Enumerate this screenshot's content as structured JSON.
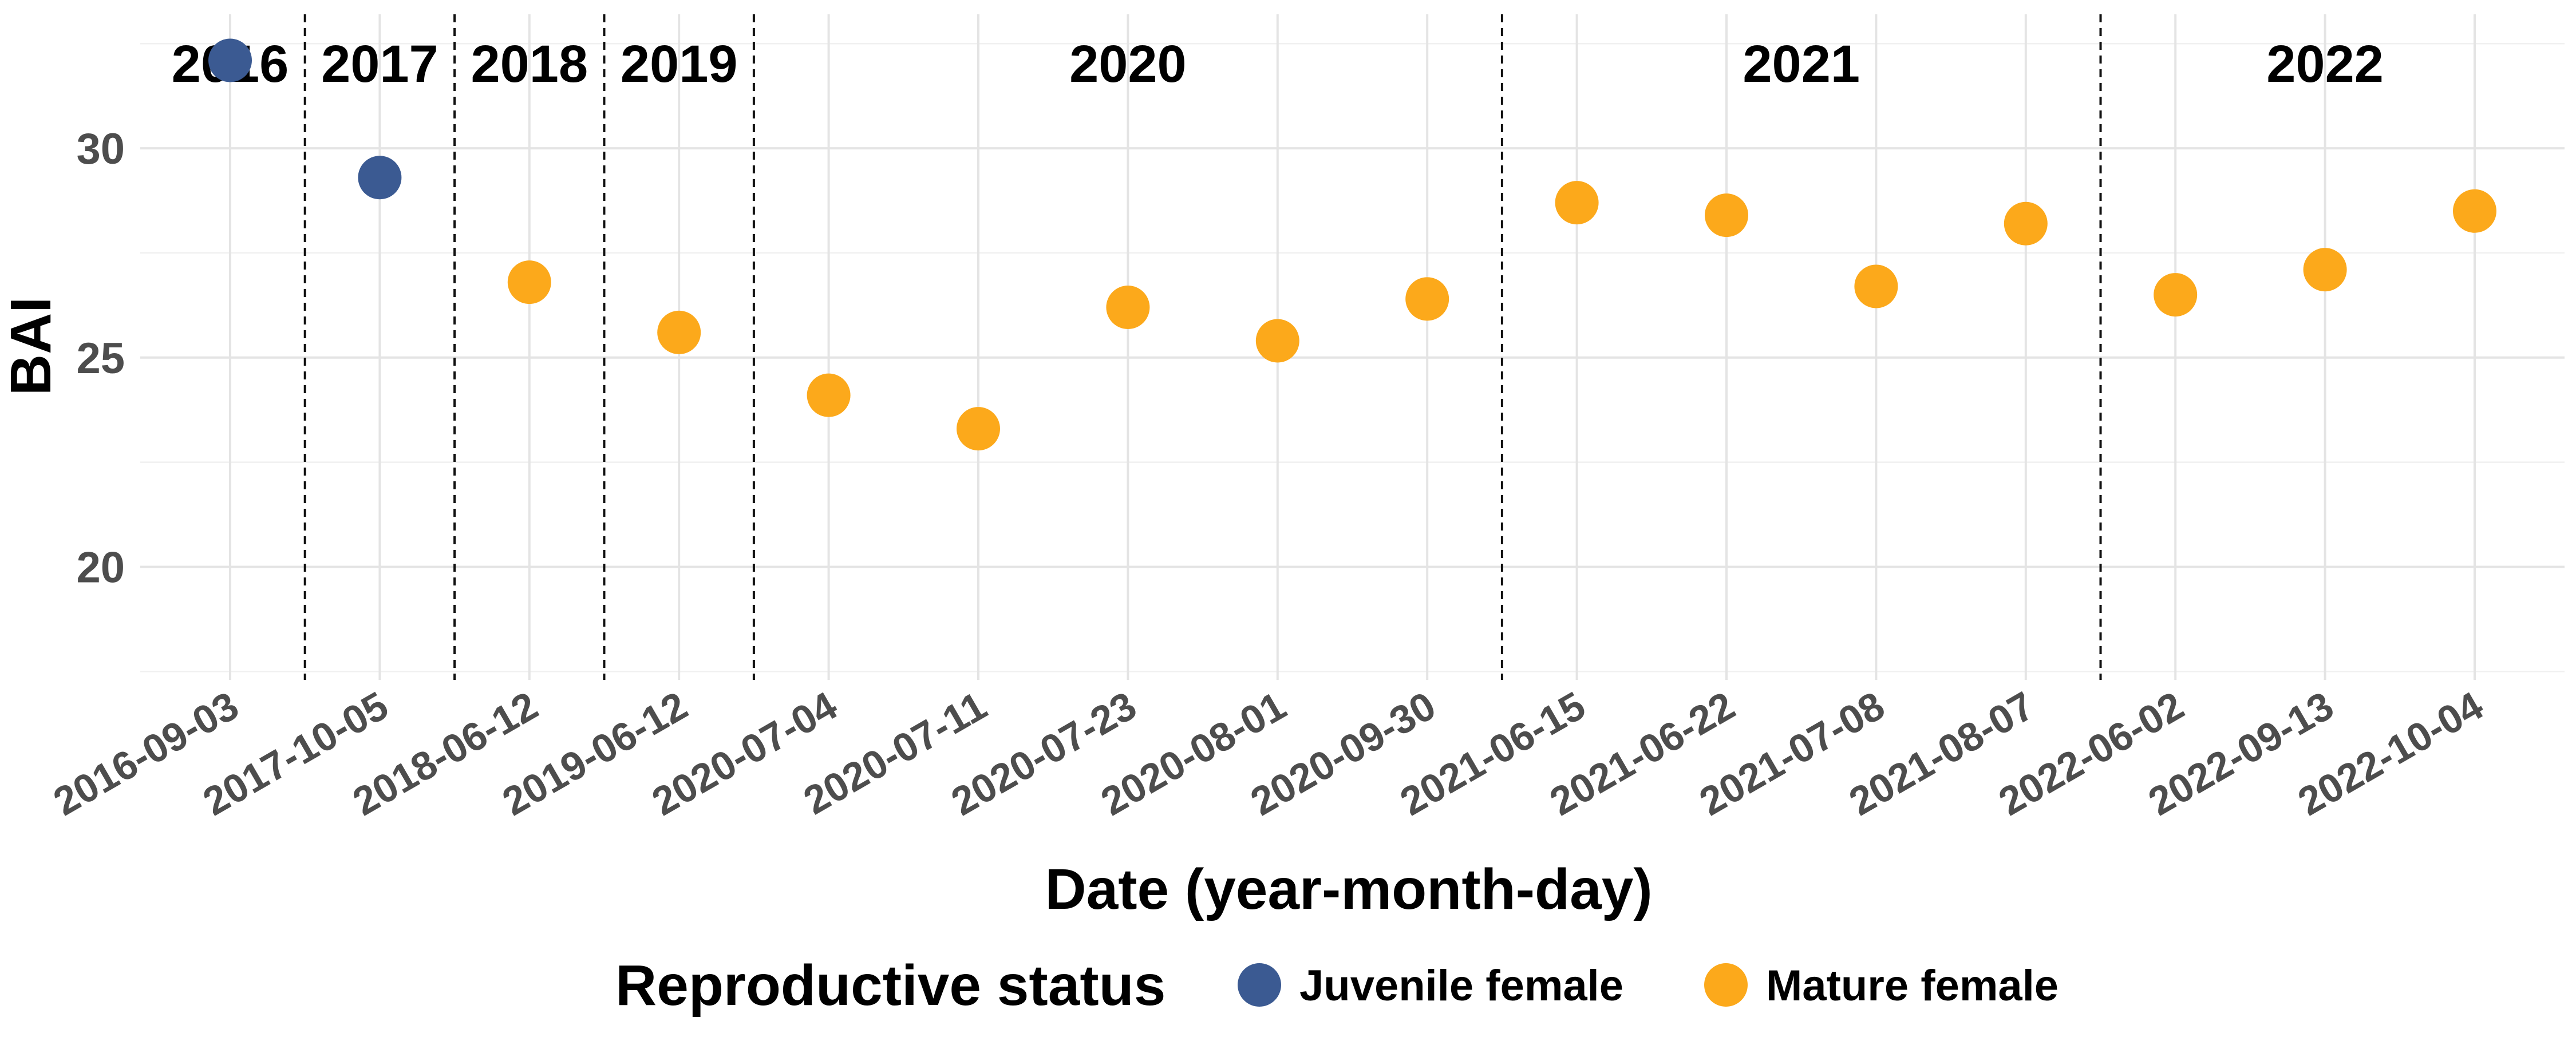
{
  "chart_data": {
    "type": "scatter",
    "title": "",
    "xlabel": "Date (year-month-day)",
    "ylabel": "BAI",
    "ylim": [
      17.3,
      33.2
    ],
    "yticks": [
      20,
      25,
      30
    ],
    "grid": true,
    "legend": {
      "title": "Reproductive status",
      "position": "bottom",
      "entries": [
        {
          "name": "Juvenile female",
          "color": "#3b5a92"
        },
        {
          "name": "Mature female",
          "color": "#fca91b"
        }
      ]
    },
    "categories": [
      "2016-09-03",
      "2017-10-05",
      "2018-06-12",
      "2019-06-12",
      "2020-07-04",
      "2020-07-11",
      "2020-07-23",
      "2020-08-01",
      "2020-09-30",
      "2021-06-15",
      "2021-06-22",
      "2021-07-08",
      "2021-08-07",
      "2022-06-02",
      "2022-09-13",
      "2022-10-04"
    ],
    "series": [
      {
        "name": "Juvenile female",
        "color": "#3b5a92",
        "points": [
          {
            "x": "2016-09-03",
            "y": 32.1
          },
          {
            "x": "2017-10-05",
            "y": 29.3
          }
        ]
      },
      {
        "name": "Mature female",
        "color": "#fca91b",
        "points": [
          {
            "x": "2018-06-12",
            "y": 26.8
          },
          {
            "x": "2019-06-12",
            "y": 25.6
          },
          {
            "x": "2020-07-04",
            "y": 24.1
          },
          {
            "x": "2020-07-11",
            "y": 23.3
          },
          {
            "x": "2020-07-23",
            "y": 26.2
          },
          {
            "x": "2020-08-01",
            "y": 25.4
          },
          {
            "x": "2020-09-30",
            "y": 26.4
          },
          {
            "x": "2021-06-15",
            "y": 28.7
          },
          {
            "x": "2021-06-22",
            "y": 28.4
          },
          {
            "x": "2021-07-08",
            "y": 26.7
          },
          {
            "x": "2021-08-07",
            "y": 28.2
          },
          {
            "x": "2022-06-02",
            "y": 26.5
          },
          {
            "x": "2022-09-13",
            "y": 27.1
          },
          {
            "x": "2022-10-04",
            "y": 28.5
          }
        ]
      }
    ],
    "year_groups": [
      {
        "label": "2016",
        "first": 0,
        "last": 0
      },
      {
        "label": "2017",
        "first": 1,
        "last": 1
      },
      {
        "label": "2018",
        "first": 2,
        "last": 2
      },
      {
        "label": "2019",
        "first": 3,
        "last": 3
      },
      {
        "label": "2020",
        "first": 4,
        "last": 8
      },
      {
        "label": "2021",
        "first": 9,
        "last": 12
      },
      {
        "label": "2022",
        "first": 13,
        "last": 15
      }
    ]
  }
}
